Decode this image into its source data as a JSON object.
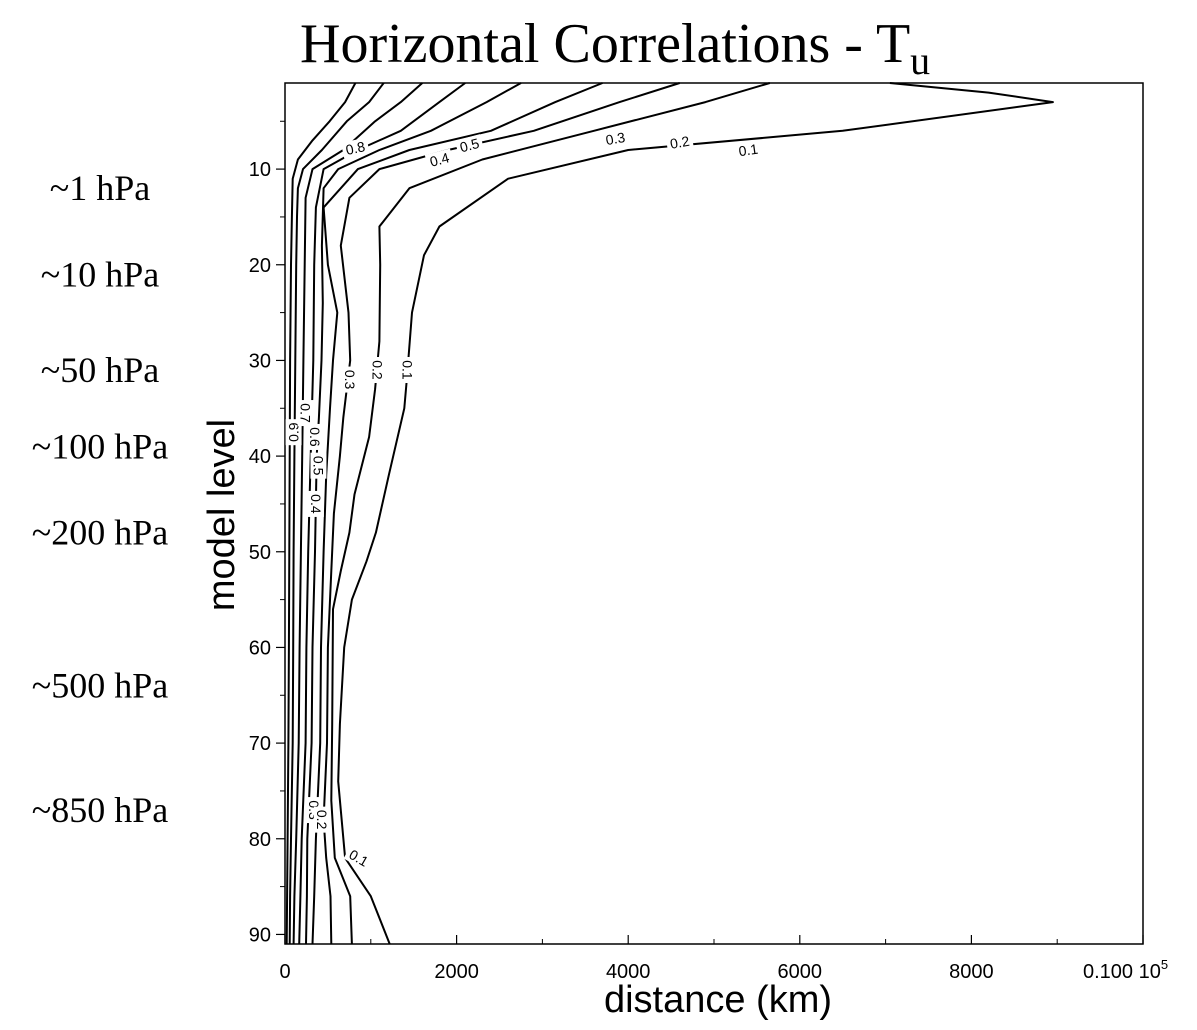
{
  "chart_data": {
    "type": "contour",
    "title": "Horizontal Correlations - T",
    "title_subscript": "u",
    "xlabel": "distance (km)",
    "ylabel": "model level",
    "xlim": [
      0,
      10000
    ],
    "ylim": [
      1,
      91
    ],
    "y_inverted": true,
    "x_ticks": [
      {
        "value": 0,
        "label": "0"
      },
      {
        "value": 2000,
        "label": "2000"
      },
      {
        "value": 4000,
        "label": "4000"
      },
      {
        "value": 6000,
        "label": "6000"
      },
      {
        "value": 8000,
        "label": "8000"
      }
    ],
    "x_end_label": "0.100 10",
    "x_end_exponent": "5",
    "y_ticks": [
      {
        "value": 10,
        "label": "10"
      },
      {
        "value": 20,
        "label": "20"
      },
      {
        "value": 30,
        "label": "30"
      },
      {
        "value": 40,
        "label": "40"
      },
      {
        "value": 50,
        "label": "50"
      },
      {
        "value": 60,
        "label": "60"
      },
      {
        "value": 70,
        "label": "70"
      },
      {
        "value": 80,
        "label": "80"
      },
      {
        "value": 90,
        "label": "90"
      }
    ],
    "pressure_annotations": [
      {
        "level": 12,
        "label": "~1 hPa"
      },
      {
        "level": 21,
        "label": "~10 hPa"
      },
      {
        "level": 31,
        "label": "~50 hPa"
      },
      {
        "level": 39,
        "label": "~100 hPa"
      },
      {
        "level": 48,
        "label": "~200 hPa"
      },
      {
        "level": 64,
        "label": "~500 hPa"
      },
      {
        "level": 77,
        "label": "~850 hPa"
      }
    ],
    "series": [
      {
        "name": "0.9",
        "points": [
          [
            820,
            1
          ],
          [
            700,
            3
          ],
          [
            520,
            5
          ],
          [
            320,
            7
          ],
          [
            150,
            9
          ],
          [
            90,
            11
          ],
          [
            80,
            15
          ],
          [
            70,
            20
          ],
          [
            60,
            30
          ],
          [
            55,
            40
          ],
          [
            50,
            50
          ],
          [
            45,
            60
          ],
          [
            40,
            70
          ],
          [
            30,
            80
          ],
          [
            25,
            86
          ],
          [
            20,
            91
          ]
        ]
      },
      {
        "name": "0.8",
        "points": [
          [
            1150,
            1
          ],
          [
            980,
            3
          ],
          [
            720,
            5
          ],
          [
            430,
            8
          ],
          [
            210,
            10
          ],
          [
            150,
            12
          ],
          [
            140,
            15
          ],
          [
            130,
            20
          ],
          [
            120,
            30
          ],
          [
            110,
            40
          ],
          [
            100,
            50
          ],
          [
            95,
            60
          ],
          [
            90,
            70
          ],
          [
            70,
            80
          ],
          [
            60,
            86
          ],
          [
            55,
            91
          ]
        ]
      },
      {
        "name": "0.7",
        "points": [
          [
            1600,
            1
          ],
          [
            1350,
            3
          ],
          [
            1050,
            5
          ],
          [
            680,
            8
          ],
          [
            320,
            10
          ],
          [
            240,
            13
          ],
          [
            230,
            20
          ],
          [
            215,
            30
          ],
          [
            200,
            40
          ],
          [
            185,
            50
          ],
          [
            170,
            60
          ],
          [
            160,
            70
          ],
          [
            130,
            80
          ],
          [
            110,
            86
          ],
          [
            100,
            91
          ]
        ]
      },
      {
        "name": "0.6",
        "points": [
          [
            2100,
            1
          ],
          [
            1800,
            3
          ],
          [
            1350,
            6
          ],
          [
            850,
            8
          ],
          [
            450,
            10
          ],
          [
            360,
            14
          ],
          [
            340,
            20
          ],
          [
            330,
            30
          ],
          [
            300,
            40
          ],
          [
            270,
            50
          ],
          [
            250,
            60
          ],
          [
            240,
            70
          ],
          [
            195,
            80
          ],
          [
            180,
            86
          ],
          [
            165,
            91
          ]
        ]
      },
      {
        "name": "0.5",
        "points": [
          [
            2750,
            1
          ],
          [
            2350,
            3
          ],
          [
            1700,
            6
          ],
          [
            1100,
            8
          ],
          [
            620,
            10
          ],
          [
            450,
            12
          ],
          [
            430,
            18
          ],
          [
            440,
            24
          ],
          [
            425,
            30
          ],
          [
            395,
            36
          ],
          [
            370,
            40
          ],
          [
            350,
            50
          ],
          [
            320,
            60
          ],
          [
            310,
            70
          ],
          [
            260,
            80
          ],
          [
            255,
            86
          ],
          [
            245,
            91
          ]
        ]
      },
      {
        "name": "0.4",
        "points": [
          [
            3700,
            1
          ],
          [
            3150,
            3
          ],
          [
            2400,
            6
          ],
          [
            1450,
            8
          ],
          [
            850,
            10
          ],
          [
            450,
            14
          ],
          [
            500,
            20
          ],
          [
            610,
            25
          ],
          [
            560,
            30
          ],
          [
            525,
            35
          ],
          [
            480,
            42
          ],
          [
            450,
            50
          ],
          [
            420,
            60
          ],
          [
            410,
            70
          ],
          [
            360,
            80
          ],
          [
            340,
            86
          ],
          [
            320,
            91
          ]
        ]
      },
      {
        "name": "0.3",
        "points": [
          [
            4600,
            1
          ],
          [
            3900,
            3
          ],
          [
            2900,
            6
          ],
          [
            1900,
            8
          ],
          [
            1100,
            10
          ],
          [
            750,
            13
          ],
          [
            650,
            18
          ],
          [
            740,
            25
          ],
          [
            760,
            30
          ],
          [
            680,
            36
          ],
          [
            640,
            40
          ],
          [
            570,
            46
          ],
          [
            540,
            52
          ],
          [
            500,
            60
          ],
          [
            490,
            70
          ],
          [
            450,
            78
          ],
          [
            480,
            82
          ],
          [
            530,
            86
          ],
          [
            540,
            91
          ]
        ]
      },
      {
        "name": "0.2",
        "points": [
          [
            5650,
            1
          ],
          [
            4900,
            3
          ],
          [
            3600,
            6
          ],
          [
            2300,
            9
          ],
          [
            1450,
            12
          ],
          [
            1100,
            16
          ],
          [
            1110,
            20
          ],
          [
            1100,
            28
          ],
          [
            1050,
            33
          ],
          [
            980,
            38
          ],
          [
            810,
            44
          ],
          [
            750,
            48
          ],
          [
            650,
            52
          ],
          [
            560,
            56
          ],
          [
            550,
            68
          ],
          [
            540,
            76
          ],
          [
            580,
            82
          ],
          [
            760,
            86
          ],
          [
            780,
            91
          ]
        ]
      },
      {
        "name": "0.1",
        "points": [
          [
            7050,
            1
          ],
          [
            8200,
            2
          ],
          [
            8950,
            3
          ],
          [
            6500,
            6
          ],
          [
            4000,
            8
          ],
          [
            2600,
            11
          ],
          [
            1800,
            16
          ],
          [
            1620,
            19
          ],
          [
            1480,
            25
          ],
          [
            1420,
            32
          ],
          [
            1390,
            35
          ],
          [
            1210,
            42
          ],
          [
            1060,
            48
          ],
          [
            950,
            51
          ],
          [
            780,
            55
          ],
          [
            690,
            60
          ],
          [
            640,
            68
          ],
          [
            620,
            74
          ],
          [
            700,
            82
          ],
          [
            1000,
            86
          ],
          [
            1220,
            91
          ]
        ]
      }
    ],
    "contour_labels": [
      {
        "text": "0.8",
        "x": 820,
        "y": 7.8,
        "angle": -12
      },
      {
        "text": "0.5",
        "x": 2150,
        "y": 7.5,
        "angle": -15
      },
      {
        "text": "0.4",
        "x": 1800,
        "y": 9.0,
        "angle": -15
      },
      {
        "text": "0.3",
        "x": 3850,
        "y": 6.8,
        "angle": -10
      },
      {
        "text": "0.2",
        "x": 4600,
        "y": 7.2,
        "angle": -10
      },
      {
        "text": "0.1",
        "x": 5400,
        "y": 8.0,
        "angle": -8
      },
      {
        "text": "0.3",
        "x": 760,
        "y": 32,
        "angle": 90
      },
      {
        "text": "0.2",
        "x": 1080,
        "y": 31,
        "angle": 90
      },
      {
        "text": "0.1",
        "x": 1430,
        "y": 31,
        "angle": 90
      },
      {
        "text": "0.9",
        "x": 100,
        "y": 37.5,
        "angle": -90
      },
      {
        "text": "0.7",
        "x": 240,
        "y": 35.5,
        "angle": 90
      },
      {
        "text": "0.6",
        "x": 350,
        "y": 38,
        "angle": 90
      },
      {
        "text": "0.5",
        "x": 390,
        "y": 41,
        "angle": 90
      },
      {
        "text": "0.4",
        "x": 360,
        "y": 45,
        "angle": 90
      },
      {
        "text": "0.3",
        "x": 340,
        "y": 77,
        "angle": 90
      },
      {
        "text": "0.2",
        "x": 430,
        "y": 78,
        "angle": 90
      },
      {
        "text": "0.1",
        "x": 860,
        "y": 82,
        "angle": 30
      }
    ]
  }
}
